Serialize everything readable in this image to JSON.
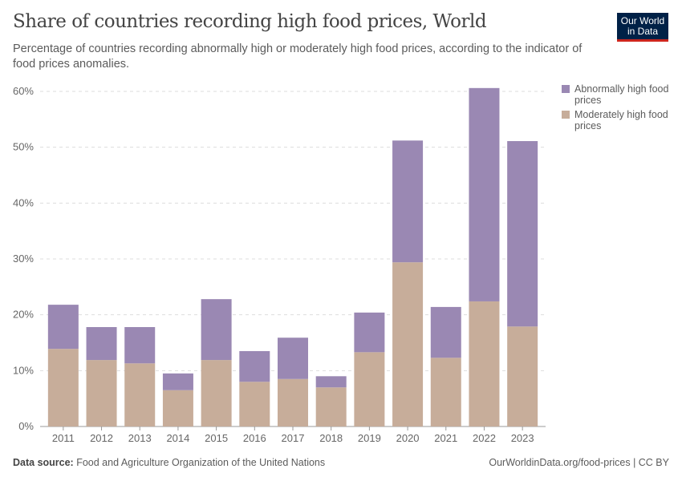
{
  "header": {
    "title": "Share of countries recording high food prices, World",
    "subtitle": "Percentage of countries recording abnormally high or moderately high food prices, according to the indicator of food prices anomalies.",
    "logo": "Our World in Data"
  },
  "footer": {
    "source_label": "Data source:",
    "source": "Food and Agriculture Organization of the United Nations",
    "link": "OurWorldinData.org/food-prices | CC BY"
  },
  "chart_data": {
    "type": "bar",
    "stacked": true,
    "title": "Share of countries recording high food prices, World",
    "categories": [
      "2011",
      "2012",
      "2013",
      "2014",
      "2015",
      "2016",
      "2017",
      "2018",
      "2019",
      "2020",
      "2021",
      "2022",
      "2023"
    ],
    "series": [
      {
        "name": "Moderately high food prices",
        "color": "#c7ad9a",
        "values": [
          13.9,
          11.9,
          11.3,
          6.5,
          11.9,
          8.0,
          8.5,
          7.0,
          13.3,
          29.4,
          12.3,
          22.4,
          17.9
        ]
      },
      {
        "name": "Abnormally high food prices",
        "color": "#9a88b3",
        "values": [
          7.9,
          5.9,
          6.5,
          3.0,
          10.9,
          5.5,
          7.4,
          2.0,
          7.1,
          21.8,
          9.1,
          38.2,
          33.2
        ]
      }
    ],
    "ylim": [
      0,
      60
    ],
    "yticks": [
      "0%",
      "10%",
      "20%",
      "30%",
      "40%",
      "50%",
      "60%"
    ],
    "grid": true,
    "legend": "right"
  }
}
